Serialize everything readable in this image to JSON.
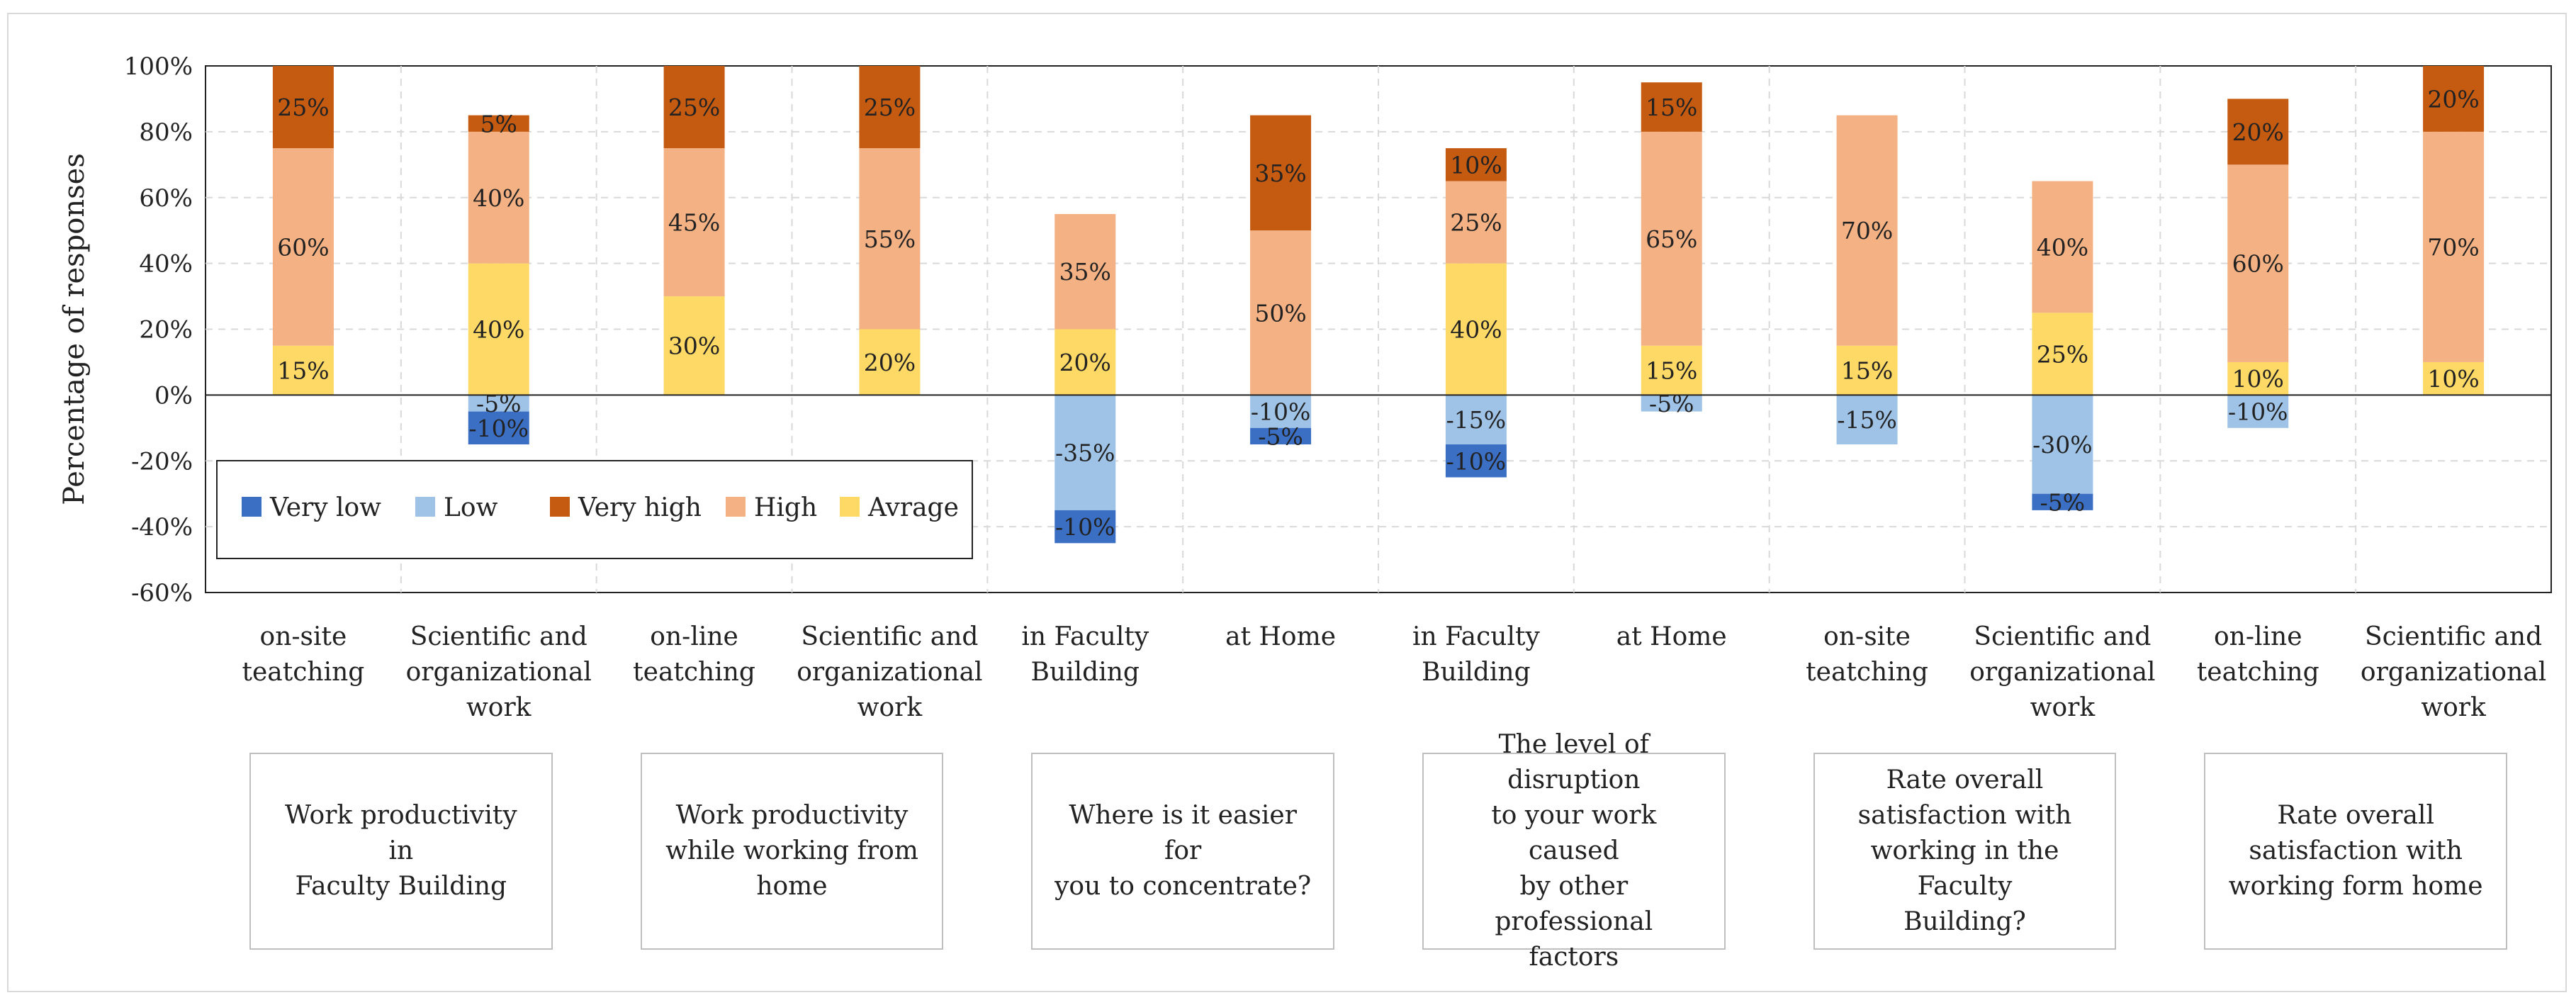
{
  "chart_data": {
    "type": "bar",
    "stacked": true,
    "ylabel": "Percentage of responses",
    "ylim": [
      -60,
      100
    ],
    "yticks": [
      -60,
      -40,
      -20,
      0,
      20,
      40,
      60,
      80,
      100
    ],
    "ytick_labels": [
      "-60%",
      "-40%",
      "-20%",
      "0%",
      "20%",
      "40%",
      "60%",
      "80%",
      "100%"
    ],
    "grid": true,
    "legend_position": "lower-left",
    "colors": {
      "Very low": "#3b6fc4",
      "Low": "#9fc3e7",
      "Very high": "#c55a11",
      "High": "#f4b183",
      "Avrage": "#ffd966"
    },
    "legend": [
      "Very low",
      "Low",
      "Very high",
      "High",
      "Avrage"
    ],
    "categories": [
      [
        "on-site",
        "teatching"
      ],
      [
        "Scientific and",
        "organizational",
        "work"
      ],
      [
        "on-line",
        "teatching"
      ],
      [
        "Scientific and",
        "organizational",
        "work"
      ],
      [
        "in Faculty",
        "Building"
      ],
      [
        "at Home"
      ],
      [
        "in Faculty",
        "Building"
      ],
      [
        "at Home"
      ],
      [
        "on-site",
        "teatching"
      ],
      [
        "Scientific and",
        "organizational",
        "work"
      ],
      [
        "on-line",
        "teatching"
      ],
      [
        "Scientific and",
        "organizational",
        "work"
      ]
    ],
    "series": [
      {
        "name": "Avrage",
        "values": [
          15,
          40,
          30,
          20,
          20,
          0,
          40,
          15,
          15,
          25,
          10,
          10
        ],
        "labels": [
          "15%",
          "40%",
          "30%",
          "20%",
          "20%",
          "",
          "40%",
          "15%",
          "15%",
          "25%",
          "10%",
          "10%"
        ]
      },
      {
        "name": "High",
        "values": [
          60,
          40,
          45,
          55,
          35,
          50,
          25,
          65,
          70,
          40,
          60,
          70
        ],
        "labels": [
          "60%",
          "40%",
          "45%",
          "55%",
          "35%",
          "50%",
          "25%",
          "65%",
          "70%",
          "40%",
          "60%",
          "70%"
        ]
      },
      {
        "name": "Very high",
        "values": [
          25,
          5,
          25,
          25,
          0,
          35,
          10,
          15,
          0,
          0,
          20,
          20
        ],
        "labels": [
          "25%",
          "5%",
          "25%",
          "25%",
          "",
          "35%",
          "10%",
          "15%",
          "",
          "",
          "20%",
          "20%"
        ]
      },
      {
        "name": "Low",
        "values": [
          0,
          -5,
          0,
          0,
          -35,
          -10,
          -15,
          -5,
          -15,
          -30,
          -10,
          0
        ],
        "labels": [
          "",
          "-5%",
          "",
          "",
          "-35%",
          "-10%",
          "-15%",
          "-5%",
          "-15%",
          "-30%",
          "-10%",
          ""
        ]
      },
      {
        "name": "Very low",
        "values": [
          0,
          -10,
          0,
          0,
          -10,
          -5,
          -10,
          0,
          0,
          -5,
          0,
          0
        ],
        "labels": [
          "",
          "-10%",
          "",
          "",
          "-10%",
          "-5%",
          "-10%",
          "",
          "",
          "-5%",
          "",
          ""
        ]
      }
    ],
    "groups": [
      {
        "label": [
          "Work productivity in",
          "Faculty Building"
        ]
      },
      {
        "label": [
          "Work productivity",
          "while working from",
          "home"
        ]
      },
      {
        "label": [
          "Where is it easier for",
          "you to concentrate?"
        ]
      },
      {
        "label": [
          "The level of disruption",
          "to your work caused",
          "by other professional",
          "factors"
        ]
      },
      {
        "label": [
          "Rate overall",
          "satisfaction with",
          "working in the Faculty",
          "Building?"
        ]
      },
      {
        "label": [
          "Rate overall",
          "satisfaction with",
          "working form home"
        ]
      }
    ]
  }
}
